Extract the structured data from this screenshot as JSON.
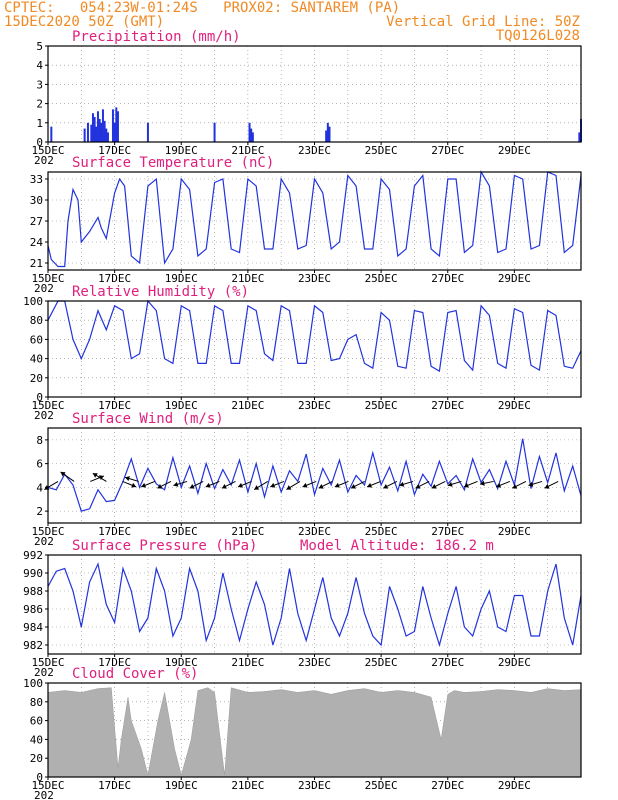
{
  "header": {
    "line1": "CPTEC:   054:23W-01:24S   PROX02: SANTAREM (PA)",
    "line2": "15DEC2020 50Z (GMT)",
    "grid_note": "Vertical Grid Line: 50Z",
    "code": "TQ0126L028"
  },
  "x_axis": {
    "ticks": [
      "15DEC",
      "17DEC",
      "19DEC",
      "21DEC",
      "23DEC",
      "25DEC",
      "27DEC",
      "29DEC"
    ],
    "year_fragment": "202"
  },
  "panels": {
    "precip": {
      "title": "Precipitation (mm/h)"
    },
    "temp": {
      "title": "Surface Temperature (nC)"
    },
    "rh": {
      "title": "Relative Humidity (%)"
    },
    "wind": {
      "title": "Surface Wind (m/s)"
    },
    "press": {
      "title": "Surface Pressure (hPa)",
      "altitude": "Model Altitude: 186.2 m"
    },
    "cloud": {
      "title": "Cloud Cover (%)"
    }
  },
  "colors": {
    "line": "#2233dd",
    "bar": "#2233dd",
    "cloud": "#b0b0b0",
    "title": "#e0207f",
    "header": "#f08a24"
  },
  "chart_data": [
    {
      "type": "bar",
      "title": "Precipitation (mm/h)",
      "ylim": [
        0,
        5
      ],
      "yticks": [
        "0",
        "1",
        "2",
        "3",
        "4",
        "5"
      ],
      "x_days": [
        0.1,
        1.1,
        1.2,
        1.3,
        1.35,
        1.4,
        1.45,
        1.5,
        1.55,
        1.6,
        1.65,
        1.7,
        1.75,
        1.8,
        1.95,
        2.0,
        2.05,
        2.1,
        3.0,
        5.0,
        6.05,
        6.1,
        6.15,
        8.35,
        8.4,
        8.45,
        15.95,
        16.0
      ],
      "values": [
        0.8,
        0.7,
        1.0,
        0.9,
        1.5,
        1.3,
        0.8,
        1.6,
        1.2,
        1.0,
        1.7,
        1.1,
        0.7,
        0.5,
        1.7,
        1.0,
        1.8,
        1.6,
        1.0,
        1.0,
        1.0,
        0.7,
        0.5,
        0.6,
        1.0,
        0.8,
        0.5,
        1.2
      ]
    },
    {
      "type": "line",
      "title": "Surface Temperature (nC)",
      "ylim": [
        20,
        34
      ],
      "yticks": [
        "21",
        "24",
        "27",
        "30",
        "33"
      ],
      "x_days": [
        0,
        0.1,
        0.3,
        0.5,
        0.6,
        0.75,
        0.9,
        1.0,
        1.25,
        1.5,
        1.6,
        1.75,
        2.0,
        2.15,
        2.3,
        2.5,
        2.75,
        3.0,
        3.25,
        3.5,
        3.75,
        4.0,
        4.25,
        4.5,
        4.75,
        5.0,
        5.25,
        5.5,
        5.75,
        6.0,
        6.25,
        6.5,
        6.75,
        7.0,
        7.25,
        7.5,
        7.75,
        8.0,
        8.25,
        8.5,
        8.75,
        9.0,
        9.25,
        9.5,
        9.75,
        10.0,
        10.25,
        10.5,
        10.75,
        11.0,
        11.25,
        11.5,
        11.75,
        12.0,
        12.25,
        12.5,
        12.75,
        13.0,
        13.25,
        13.5,
        13.75,
        14.0,
        14.25,
        14.5,
        14.75,
        15.0,
        15.25,
        15.5,
        15.75,
        16.0
      ],
      "values": [
        23.5,
        21.5,
        20.5,
        20.5,
        27.0,
        31.5,
        30.0,
        24.0,
        25.5,
        27.5,
        26.0,
        24.5,
        31.0,
        33.0,
        32.0,
        22.0,
        21.0,
        32.0,
        33.0,
        21.0,
        23.0,
        33.0,
        31.5,
        22.0,
        23.0,
        32.5,
        33.0,
        23.0,
        22.5,
        33.0,
        32.0,
        23.0,
        23.0,
        33.0,
        31.0,
        23.0,
        23.5,
        33.0,
        31.0,
        23.0,
        24.0,
        33.5,
        32.0,
        23.0,
        23.0,
        33.0,
        31.5,
        22.0,
        23.0,
        32.0,
        33.5,
        23.0,
        22.0,
        33.0,
        33.0,
        22.5,
        23.5,
        34.0,
        32.0,
        22.5,
        23.0,
        33.5,
        33.0,
        23.0,
        23.5,
        34.0,
        33.5,
        22.5,
        23.5,
        33.5
      ]
    },
    {
      "type": "line",
      "title": "Relative Humidity (%)",
      "ylim": [
        0,
        100
      ],
      "yticks": [
        "0",
        "20",
        "40",
        "60",
        "80",
        "100"
      ],
      "x_days": [
        0,
        0.3,
        0.5,
        0.75,
        1.0,
        1.25,
        1.5,
        1.75,
        2.0,
        2.25,
        2.5,
        2.75,
        3.0,
        3.25,
        3.5,
        3.75,
        4.0,
        4.25,
        4.5,
        4.75,
        5.0,
        5.25,
        5.5,
        5.75,
        6.0,
        6.25,
        6.5,
        6.75,
        7.0,
        7.25,
        7.5,
        7.75,
        8.0,
        8.25,
        8.5,
        8.75,
        9.0,
        9.25,
        9.5,
        9.75,
        10.0,
        10.25,
        10.5,
        10.75,
        11.0,
        11.25,
        11.5,
        11.75,
        12.0,
        12.25,
        12.5,
        12.75,
        13.0,
        13.25,
        13.5,
        13.75,
        14.0,
        14.25,
        14.5,
        14.75,
        15.0,
        15.25,
        15.5,
        15.75,
        16.0
      ],
      "values": [
        80,
        100,
        100,
        60,
        40,
        60,
        90,
        70,
        95,
        90,
        40,
        45,
        100,
        90,
        40,
        35,
        95,
        90,
        35,
        35,
        95,
        90,
        35,
        35,
        95,
        90,
        45,
        38,
        95,
        90,
        35,
        35,
        95,
        88,
        38,
        40,
        60,
        65,
        35,
        30,
        88,
        80,
        32,
        30,
        90,
        88,
        32,
        27,
        88,
        90,
        38,
        28,
        95,
        85,
        35,
        30,
        92,
        88,
        33,
        28,
        90,
        85,
        32,
        30,
        48
      ]
    },
    {
      "type": "line",
      "title": "Surface Wind (m/s)",
      "ylim": [
        1,
        9
      ],
      "yticks": [
        "2",
        "4",
        "6",
        "8"
      ],
      "x_days": [
        0,
        0.25,
        0.5,
        0.75,
        1.0,
        1.25,
        1.5,
        1.75,
        2.0,
        2.25,
        2.5,
        2.75,
        3.0,
        3.25,
        3.5,
        3.75,
        4.0,
        4.25,
        4.5,
        4.75,
        5.0,
        5.25,
        5.5,
        5.75,
        6.0,
        6.25,
        6.5,
        6.75,
        7.0,
        7.25,
        7.5,
        7.75,
        8.0,
        8.25,
        8.5,
        8.75,
        9.0,
        9.25,
        9.5,
        9.75,
        10.0,
        10.25,
        10.5,
        10.75,
        11.0,
        11.25,
        11.5,
        11.75,
        12.0,
        12.25,
        12.5,
        12.75,
        13.0,
        13.25,
        13.5,
        13.75,
        14.0,
        14.25,
        14.5,
        14.75,
        15.0,
        15.25,
        15.5,
        15.75,
        16.0
      ],
      "values": [
        4.0,
        3.8,
        5.1,
        4.2,
        2.0,
        2.2,
        3.8,
        2.8,
        2.9,
        4.5,
        6.4,
        4.0,
        5.6,
        4.3,
        3.8,
        6.5,
        4.0,
        5.8,
        3.5,
        6.0,
        3.9,
        5.5,
        4.2,
        6.3,
        3.6,
        6.0,
        3.2,
        5.8,
        3.6,
        5.4,
        4.5,
        6.8,
        3.4,
        5.6,
        4.2,
        6.3,
        3.6,
        5.0,
        4.2,
        6.9,
        4.2,
        5.7,
        3.7,
        6.2,
        3.4,
        5.1,
        4.1,
        6.2,
        4.3,
        5.0,
        3.8,
        6.4,
        4.4,
        5.5,
        3.9,
        6.2,
        4.2,
        8.1,
        3.9,
        6.6,
        4.4,
        6.9,
        3.7,
        5.8,
        3.3
      ],
      "vectors_u": [
        -1,
        -1,
        1,
        -1,
        1,
        -1,
        -1,
        -1,
        -1,
        -1,
        -1,
        -1,
        -1,
        -1,
        -1,
        -1,
        -1,
        -1,
        -1,
        -1,
        -1,
        -1,
        -1,
        -1,
        -1,
        -1,
        -1,
        -1,
        -1,
        -1,
        -1,
        -1
      ],
      "vectors_v": [
        -0.6,
        0.7,
        0.4,
        0.6,
        -0.4,
        0.3,
        -0.4,
        -0.5,
        -0.3,
        -0.5,
        -0.4,
        -0.5,
        -0.4,
        -0.6,
        -0.4,
        -0.6,
        -0.4,
        -0.5,
        -0.4,
        -0.5,
        -0.4,
        -0.5,
        -0.3,
        -0.5,
        -0.5,
        -0.3,
        -0.4,
        -0.2,
        -0.4,
        -0.5,
        -0.3,
        -0.5
      ]
    },
    {
      "type": "line",
      "title": "Surface Pressure (hPa)",
      "ylim": [
        981,
        992
      ],
      "yticks": [
        "982",
        "984",
        "986",
        "988",
        "990",
        "992"
      ],
      "x_days": [
        0,
        0.25,
        0.5,
        0.75,
        1.0,
        1.25,
        1.5,
        1.75,
        2.0,
        2.25,
        2.5,
        2.75,
        3.0,
        3.25,
        3.5,
        3.75,
        4.0,
        4.25,
        4.5,
        4.75,
        5.0,
        5.25,
        5.5,
        5.75,
        6.0,
        6.25,
        6.5,
        6.75,
        7.0,
        7.25,
        7.5,
        7.75,
        8.0,
        8.25,
        8.5,
        8.75,
        9.0,
        9.25,
        9.5,
        9.75,
        10.0,
        10.25,
        10.5,
        10.75,
        11.0,
        11.25,
        11.5,
        11.75,
        12.0,
        12.25,
        12.5,
        12.75,
        13.0,
        13.25,
        13.5,
        13.75,
        14.0,
        14.25,
        14.5,
        14.75,
        15.0,
        15.25,
        15.5,
        15.75,
        16.0
      ],
      "values": [
        988.5,
        990.2,
        990.5,
        988.0,
        984.0,
        989.0,
        991.0,
        986.5,
        984.5,
        990.5,
        988.0,
        983.5,
        985.0,
        990.5,
        988.0,
        983.0,
        985.0,
        990.5,
        988.0,
        982.5,
        985.0,
        990.0,
        986.0,
        982.5,
        986.0,
        989.0,
        986.5,
        982.0,
        985.0,
        990.5,
        985.5,
        982.5,
        986.0,
        989.5,
        985.0,
        983.0,
        985.5,
        989.5,
        985.5,
        983.0,
        982.0,
        988.5,
        986.0,
        983.0,
        983.5,
        988.5,
        985.0,
        982.0,
        985.5,
        988.5,
        984.0,
        983.0,
        986.0,
        988.0,
        984.0,
        983.5,
        987.5,
        987.5,
        983.0,
        983.0,
        988.0,
        991.0,
        985.0,
        982.0,
        987.5
      ]
    },
    {
      "type": "area",
      "title": "Cloud Cover (%)",
      "ylim": [
        0,
        100
      ],
      "yticks": [
        "0",
        "20",
        "40",
        "60",
        "80",
        "100"
      ],
      "x_days": [
        0,
        0.5,
        1.0,
        1.5,
        1.9,
        2.1,
        2.2,
        2.4,
        2.5,
        2.8,
        3.0,
        3.3,
        3.5,
        3.8,
        4.0,
        4.3,
        4.5,
        4.8,
        5.0,
        5.3,
        5.5,
        5.8,
        6.0,
        6.5,
        7.0,
        7.5,
        8.0,
        8.5,
        9.0,
        9.5,
        10.0,
        10.5,
        11.0,
        11.5,
        11.8,
        12.0,
        12.2,
        12.5,
        13.0,
        13.5,
        14.0,
        14.5,
        15.0,
        15.5,
        16.0
      ],
      "values": [
        90,
        92,
        90,
        94,
        95,
        10,
        40,
        85,
        60,
        30,
        2,
        60,
        90,
        30,
        2,
        40,
        92,
        95,
        90,
        2,
        95,
        92,
        90,
        91,
        93,
        90,
        92,
        88,
        92,
        94,
        90,
        92,
        90,
        85,
        40,
        88,
        92,
        90,
        91,
        93,
        92,
        90,
        94,
        92,
        93
      ]
    }
  ]
}
